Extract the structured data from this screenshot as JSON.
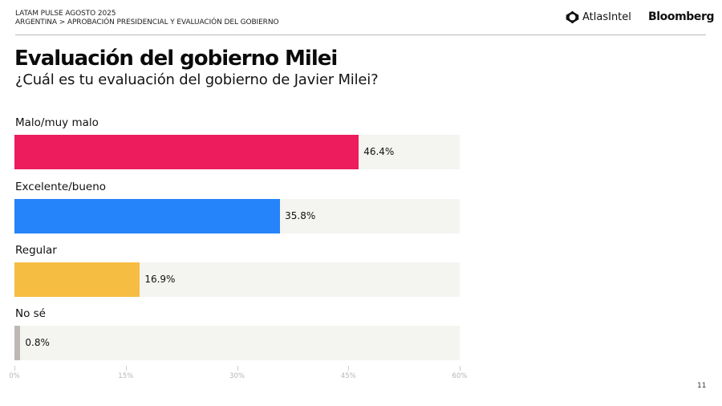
{
  "header": {
    "line1": "LATAM PULSE AGOSTO 2025",
    "line2": "ARGENTINA > APROBACIÓN PRESIDENCIAL Y EVALUACIÓN DEL GOBIERNO",
    "logos": {
      "atlas": "AtlasIntel",
      "atlas_icon": "atlasintel-logo-icon",
      "bloomberg": "Bloomberg"
    }
  },
  "title": "Evaluación del gobierno Milei",
  "subtitle": "¿Cuál es tu evaluación del gobierno de Javier Milei?",
  "page_number": "11",
  "colors": {
    "malo": "#ec1c5d",
    "bueno": "#2584fa",
    "regular": "#f5bd42",
    "nose": "#bdb8b3",
    "track": "#f4f4f1"
  },
  "chart_data": {
    "type": "bar",
    "orientation": "horizontal",
    "title": "Evaluación del gobierno Milei",
    "subtitle": "¿Cuál es tu evaluación del gobierno de Javier Milei?",
    "categories": [
      "Malo/muy malo",
      "Excelente/bueno",
      "Regular",
      "No sé"
    ],
    "values": [
      46.4,
      35.8,
      16.9,
      0.8
    ],
    "value_labels": [
      "46.4%",
      "35.8%",
      "16.9%",
      "0.8%"
    ],
    "colors": [
      "#ec1c5d",
      "#2584fa",
      "#f5bd42",
      "#bdb8b3"
    ],
    "xlabel": "",
    "ylabel": "",
    "xlim": [
      0,
      60
    ],
    "xticks": [
      0,
      15,
      30,
      45,
      60
    ],
    "xtick_labels": [
      "0%",
      "15%",
      "30%",
      "45%",
      "60%"
    ],
    "grid": false,
    "legend": "none"
  }
}
